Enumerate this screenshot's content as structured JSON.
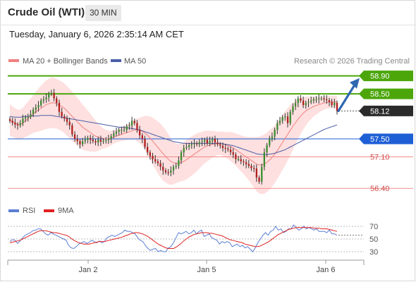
{
  "header": {
    "title": "Crude Oil (WTI)",
    "timeframe": "30 MIN"
  },
  "datetime": "Tuesday, January 6, 2026 2:35:14 AM CET",
  "legend": {
    "ma20_bb": "MA 20 + Bollinger Bands",
    "ma50": "MA 50",
    "copyright": "Research © 2026 Trading Central",
    "rsi": "RSI",
    "rsi_ma": "9MA"
  },
  "colors": {
    "ma20": "#f08080",
    "band_fill": "#fde0df",
    "ma50": "#4a5fa8",
    "resistance": "#4ca60a",
    "support_blue": "#1f5fd6",
    "support_red": "#f28b8b",
    "last_price": "#2b2b2b",
    "candle_up": "#3a8c2e",
    "candle_down": "#b21d1d",
    "arrow": "#2f67b0",
    "rsi": "#5b7fd4",
    "rsi_ma": "#e02020"
  },
  "chart_data": [
    {
      "type": "candlestick",
      "title": "",
      "x_tick_labels": [
        "Jan 2",
        "Jan 5",
        "Jan 6"
      ],
      "ylim": [
        56.2,
        59.05
      ],
      "levels": [
        {
          "value": 58.9,
          "label": "58.90",
          "kind": "resistance",
          "style": "tag"
        },
        {
          "value": 58.5,
          "label": "58.50",
          "kind": "resistance",
          "style": "tag"
        },
        {
          "value": 58.12,
          "label": "58.12",
          "kind": "last",
          "style": "tag"
        },
        {
          "value": 57.5,
          "label": "57.50",
          "kind": "pivot",
          "style": "tag"
        },
        {
          "value": 57.1,
          "label": "57.10",
          "kind": "support",
          "style": "text"
        },
        {
          "value": 56.4,
          "label": "56.40",
          "kind": "support",
          "style": "text"
        }
      ],
      "closes": [
        57.9,
        57.86,
        57.82,
        57.8,
        57.85,
        57.95,
        57.98,
        57.99,
        58.05,
        58.15,
        58.2,
        58.25,
        58.35,
        58.38,
        58.42,
        58.5,
        58.52,
        58.4,
        58.3,
        58.1,
        58.0,
        57.95,
        57.88,
        57.8,
        57.6,
        57.5,
        57.45,
        57.38,
        57.45,
        57.48,
        57.52,
        57.48,
        57.45,
        57.42,
        57.48,
        57.44,
        57.46,
        57.47,
        57.5,
        57.56,
        57.62,
        57.66,
        57.7,
        57.7,
        57.7,
        57.78,
        57.8,
        57.9,
        57.85,
        57.7,
        57.58,
        57.5,
        57.32,
        57.2,
        57.12,
        57.05,
        57.0,
        56.96,
        56.88,
        56.8,
        56.76,
        56.75,
        56.8,
        56.88,
        56.9,
        57.02,
        57.2,
        57.3,
        57.32,
        57.36,
        57.38,
        57.4,
        57.38,
        57.42,
        57.44,
        57.48,
        57.4,
        57.46,
        57.5,
        57.42,
        57.38,
        57.35,
        57.3,
        57.28,
        57.26,
        57.2,
        57.15,
        57.05,
        57.05,
        57.0,
        56.98,
        56.94,
        56.9,
        56.85,
        56.84,
        56.64,
        56.55,
        56.88,
        57.2,
        57.36,
        57.5,
        57.55,
        57.7,
        57.85,
        57.9,
        57.98,
        58.0,
        57.85,
        58.1,
        58.22,
        58.3,
        58.4,
        58.35,
        58.25,
        58.3,
        58.32,
        58.35,
        58.38,
        58.38,
        58.4,
        58.4,
        58.38,
        58.36,
        58.32,
        58.25,
        58.3,
        58.12
      ],
      "ma20_line": [
        57.92,
        57.88,
        57.85,
        57.82,
        57.82,
        57.85,
        57.9,
        57.95,
        58.0,
        58.05,
        58.1,
        58.14,
        58.18,
        58.22,
        58.26,
        58.28,
        58.3,
        58.3,
        58.28,
        58.25,
        58.22,
        58.18,
        58.12,
        58.06,
        58.0,
        57.94,
        57.88,
        57.82,
        57.76,
        57.72,
        57.68,
        57.64,
        57.6,
        57.56,
        57.54,
        57.52,
        57.51,
        57.5,
        57.5,
        57.52,
        57.54,
        57.56,
        57.58,
        57.6,
        57.62,
        57.64,
        57.66,
        57.68,
        57.7,
        57.7,
        57.69,
        57.67,
        57.63,
        57.58,
        57.52,
        57.45,
        57.38,
        57.31,
        57.24,
        57.17,
        57.11,
        57.05,
        57.0,
        56.97,
        56.96,
        56.96,
        56.98,
        57.0,
        57.04,
        57.08,
        57.12,
        57.16,
        57.2,
        57.24,
        57.28,
        57.32,
        57.34,
        57.36,
        57.38,
        57.39,
        57.4,
        57.4,
        57.39,
        57.37,
        57.35,
        57.33,
        57.3,
        57.26,
        57.22,
        57.18,
        57.14,
        57.1,
        57.06,
        57.02,
        56.98,
        56.94,
        56.92,
        56.92,
        56.94,
        56.98,
        57.03,
        57.09,
        57.16,
        57.24,
        57.33,
        57.42,
        57.51,
        57.6,
        57.69,
        57.78,
        57.86,
        57.94,
        58.01,
        58.07,
        58.12,
        58.16,
        58.19,
        58.22,
        58.24,
        58.26,
        58.28,
        58.3,
        58.31,
        58.32,
        58.32,
        58.32,
        58.32
      ],
      "ma50_line": [
        58.0,
        57.99,
        57.98,
        57.98,
        57.98,
        57.99,
        58.0,
        58.0,
        58.01,
        58.01,
        58.01,
        58.01,
        58.02,
        58.02,
        58.02,
        58.02,
        58.02,
        58.01,
        58.0,
        57.99,
        57.98,
        57.97,
        57.96,
        57.95,
        57.94,
        57.93,
        57.92,
        57.91,
        57.9,
        57.89,
        57.88,
        57.87,
        57.86,
        57.85,
        57.84,
        57.83,
        57.82,
        57.81,
        57.8,
        57.79,
        57.78,
        57.77,
        57.76,
        57.76,
        57.75,
        57.75,
        57.74,
        57.73,
        57.72,
        57.71,
        57.7,
        57.68,
        57.66,
        57.64,
        57.62,
        57.6,
        57.58,
        57.56,
        57.54,
        57.52,
        57.5,
        57.48,
        57.46,
        57.44,
        57.43,
        57.42,
        57.41,
        57.4,
        57.4,
        57.4,
        57.4,
        57.4,
        57.4,
        57.4,
        57.4,
        57.4,
        57.4,
        57.4,
        57.4,
        57.4,
        57.4,
        57.4,
        57.39,
        57.38,
        57.37,
        57.36,
        57.35,
        57.33,
        57.31,
        57.29,
        57.27,
        57.25,
        57.23,
        57.21,
        57.19,
        57.17,
        57.16,
        57.15,
        57.15,
        57.15,
        57.16,
        57.17,
        57.18,
        57.2,
        57.22,
        57.24,
        57.26,
        57.29,
        57.32,
        57.35,
        57.38,
        57.41,
        57.44,
        57.47,
        57.5,
        57.53,
        57.56,
        57.59,
        57.62,
        57.65,
        57.68,
        57.71,
        57.73,
        57.75,
        57.77,
        57.79,
        57.81
      ],
      "bb_width": [
        0.35,
        0.34,
        0.33,
        0.33,
        0.33,
        0.34,
        0.36,
        0.38,
        0.4,
        0.42,
        0.45,
        0.48,
        0.5,
        0.52,
        0.54,
        0.55,
        0.56,
        0.56,
        0.55,
        0.55,
        0.55,
        0.55,
        0.55,
        0.55,
        0.55,
        0.54,
        0.53,
        0.52,
        0.5,
        0.48,
        0.45,
        0.42,
        0.38,
        0.35,
        0.3,
        0.26,
        0.22,
        0.2,
        0.18,
        0.16,
        0.15,
        0.14,
        0.14,
        0.15,
        0.16,
        0.17,
        0.18,
        0.2,
        0.22,
        0.25,
        0.28,
        0.32,
        0.38,
        0.43,
        0.48,
        0.52,
        0.55,
        0.58,
        0.6,
        0.6,
        0.58,
        0.56,
        0.52,
        0.48,
        0.44,
        0.42,
        0.42,
        0.43,
        0.44,
        0.44,
        0.44,
        0.43,
        0.42,
        0.4,
        0.38,
        0.36,
        0.34,
        0.32,
        0.3,
        0.28,
        0.26,
        0.26,
        0.27,
        0.28,
        0.3,
        0.32,
        0.34,
        0.36,
        0.38,
        0.4,
        0.42,
        0.45,
        0.48,
        0.52,
        0.56,
        0.6,
        0.63,
        0.65,
        0.66,
        0.66,
        0.66,
        0.65,
        0.64,
        0.63,
        0.62,
        0.61,
        0.6,
        0.58,
        0.56,
        0.52,
        0.48,
        0.44,
        0.4,
        0.36,
        0.32,
        0.28,
        0.25,
        0.22,
        0.2,
        0.18,
        0.16,
        0.15,
        0.14,
        0.14,
        0.14,
        0.14,
        0.14
      ],
      "projection": {
        "from_value": 58.12,
        "to_value": 58.85
      }
    },
    {
      "type": "line",
      "title": "",
      "ylim": [
        20,
        80
      ],
      "y_tick_labels": [
        "70",
        "50",
        "30"
      ],
      "y_ticks": [
        70,
        50,
        30
      ],
      "series": [
        {
          "name": "RSI",
          "values": [
            46,
            49,
            48,
            43,
            47,
            52,
            56,
            58,
            60,
            63,
            64,
            66,
            66,
            62,
            58,
            56,
            60,
            58,
            56,
            54,
            52,
            50,
            48,
            40,
            36,
            35,
            38,
            42,
            44,
            46,
            43,
            45,
            48,
            46,
            44,
            47,
            44,
            46,
            52,
            54,
            56,
            54,
            56,
            58,
            60,
            64,
            62,
            62,
            60,
            58,
            52,
            48,
            46,
            40,
            35,
            32,
            34,
            35,
            30,
            32,
            30,
            30,
            36,
            38,
            44,
            52,
            60,
            58,
            60,
            62,
            58,
            60,
            64,
            58,
            62,
            64,
            54,
            56,
            58,
            52,
            50,
            48,
            42,
            46,
            44,
            46,
            44,
            38,
            40,
            42,
            38,
            40,
            36,
            38,
            34,
            30,
            36,
            44,
            50,
            56,
            60,
            56,
            62,
            64,
            70,
            64,
            66,
            60,
            62,
            66,
            66,
            72,
            68,
            64,
            66,
            70,
            66,
            68,
            66,
            64,
            66,
            62,
            62,
            62,
            60,
            64,
            58,
            58,
            56
          ],
          "color": "#5b7fd4"
        },
        {
          "name": "9MA",
          "values": [
            44,
            45,
            46,
            47,
            48,
            50,
            52,
            54,
            56,
            58,
            60,
            62,
            63,
            63,
            63,
            62,
            61,
            60,
            60,
            59,
            58,
            57,
            56,
            54,
            51,
            48,
            46,
            44,
            43,
            42,
            42,
            42,
            43,
            44,
            45,
            46,
            46,
            46,
            47,
            48,
            49,
            50,
            51,
            52,
            53,
            55,
            56,
            58,
            59,
            60,
            60,
            59,
            58,
            56,
            54,
            51,
            48,
            45,
            42,
            40,
            38,
            36,
            35,
            35,
            35,
            37,
            40,
            43,
            47,
            50,
            53,
            55,
            57,
            58,
            59,
            60,
            60,
            60,
            59,
            59,
            58,
            57,
            56,
            55,
            53,
            51,
            49,
            48,
            47,
            46,
            45,
            44,
            42,
            41,
            40,
            39,
            38,
            38,
            39,
            41,
            43,
            45,
            48,
            51,
            54,
            57,
            59,
            61,
            63,
            65,
            66,
            67,
            68,
            68,
            68,
            68,
            68,
            68,
            68,
            67,
            67,
            67,
            66,
            66,
            66,
            65,
            64,
            63,
            62
          ],
          "color": "#e02020"
        }
      ]
    }
  ]
}
